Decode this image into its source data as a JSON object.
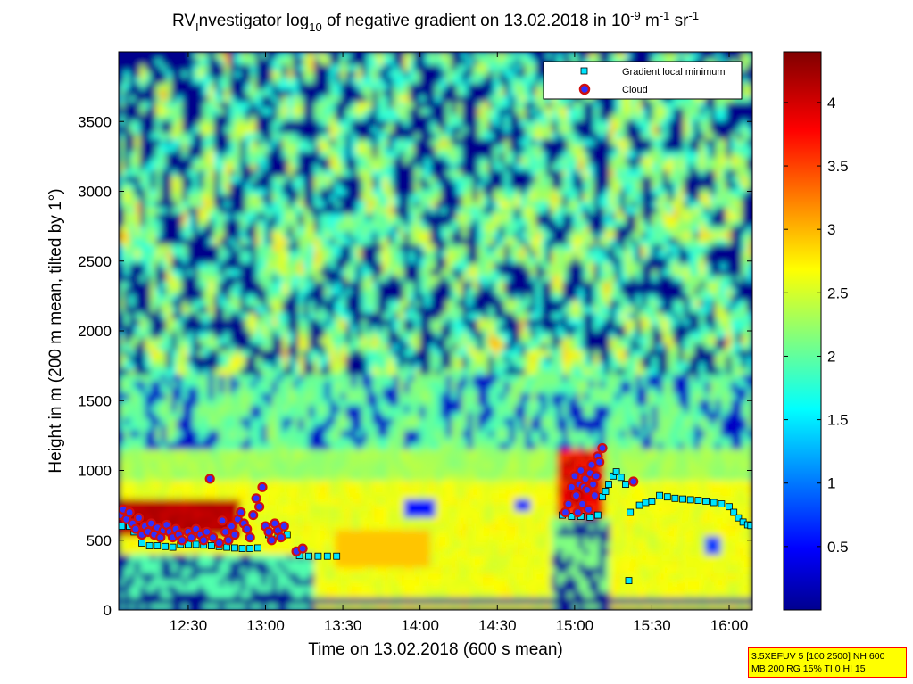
{
  "chart_data": {
    "type": "heatmap",
    "title": {
      "part1": "RV",
      "part1_sub": "I",
      "part2": "nvestigator log",
      "part2_sub": "10",
      "part3": " of negative gradient on 13.02.2018 in 10",
      "part3_sup": "-9",
      "part4": " m",
      "part4_sup": "-1",
      "part5": " sr",
      "part5_sup": "-1"
    },
    "xlabel": "Time on 13.02.2018 (600 s mean)",
    "ylabel": "Height in m (200 m mean, tilted by 1°)",
    "xlim_hours": [
      12.05,
      16.15
    ],
    "ylim": [
      0,
      4000
    ],
    "xticks": [
      {
        "value": 12.5,
        "label": "12:30"
      },
      {
        "value": 13.0,
        "label": "13:00"
      },
      {
        "value": 13.5,
        "label": "13:30"
      },
      {
        "value": 14.0,
        "label": "14:00"
      },
      {
        "value": 14.5,
        "label": "14:30"
      },
      {
        "value": 15.0,
        "label": "15:00"
      },
      {
        "value": 15.5,
        "label": "15:30"
      },
      {
        "value": 16.0,
        "label": "16:00"
      }
    ],
    "yticks": [
      {
        "value": 0,
        "label": "0"
      },
      {
        "value": 500,
        "label": "500"
      },
      {
        "value": 1000,
        "label": "1000"
      },
      {
        "value": 1500,
        "label": "1500"
      },
      {
        "value": 2000,
        "label": "2000"
      },
      {
        "value": 2500,
        "label": "2500"
      },
      {
        "value": 3000,
        "label": "3000"
      },
      {
        "value": 3500,
        "label": "3500"
      }
    ],
    "colorbar": {
      "range": [
        0,
        4.4
      ],
      "colormap": "jet",
      "ticks": [
        {
          "value": 0.5,
          "label": "0.5"
        },
        {
          "value": 1,
          "label": "1"
        },
        {
          "value": 1.5,
          "label": "1.5"
        },
        {
          "value": 2,
          "label": "2"
        },
        {
          "value": 2.5,
          "label": "2.5"
        },
        {
          "value": 3,
          "label": "3"
        },
        {
          "value": 3.5,
          "label": "3.5"
        },
        {
          "value": 4,
          "label": "4"
        }
      ]
    },
    "field_description": {
      "upper_levels": "patchy blue and green-yellow values between 1700 and 4000 m",
      "boundary_layer": "yellow-orange values 300-1200 m from 13:00 to 16:00",
      "early_layer": "dark red values 550-800 m before 12:50",
      "low_band": "dark blue strip near 70 m"
    },
    "legend": {
      "placement": "top-right",
      "entries": [
        {
          "label": "Gradient local minimum",
          "marker": "square",
          "color": "#00e5ff"
        },
        {
          "label": "Cloud",
          "marker": "circle",
          "color": "#d01010"
        }
      ]
    },
    "series": [
      {
        "name": "Gradient local minimum",
        "points": [
          {
            "t": 12.07,
            "h": 600
          },
          {
            "t": 12.12,
            "h": 600
          },
          {
            "t": 12.15,
            "h": 560
          },
          {
            "t": 12.2,
            "h": 480
          },
          {
            "t": 12.25,
            "h": 460
          },
          {
            "t": 12.3,
            "h": 460
          },
          {
            "t": 12.35,
            "h": 455
          },
          {
            "t": 12.4,
            "h": 450
          },
          {
            "t": 12.45,
            "h": 470
          },
          {
            "t": 12.5,
            "h": 470
          },
          {
            "t": 12.55,
            "h": 470
          },
          {
            "t": 12.6,
            "h": 465
          },
          {
            "t": 12.65,
            "h": 460
          },
          {
            "t": 12.7,
            "h": 455
          },
          {
            "t": 12.75,
            "h": 450
          },
          {
            "t": 12.8,
            "h": 445
          },
          {
            "t": 12.85,
            "h": 440
          },
          {
            "t": 12.9,
            "h": 440
          },
          {
            "t": 12.95,
            "h": 445
          },
          {
            "t": 13.02,
            "h": 540
          },
          {
            "t": 13.08,
            "h": 540
          },
          {
            "t": 13.14,
            "h": 540
          },
          {
            "t": 13.22,
            "h": 390
          },
          {
            "t": 13.28,
            "h": 385
          },
          {
            "t": 13.34,
            "h": 385
          },
          {
            "t": 13.4,
            "h": 385
          },
          {
            "t": 13.46,
            "h": 385
          },
          {
            "t": 14.92,
            "h": 680
          },
          {
            "t": 14.98,
            "h": 670
          },
          {
            "t": 15.04,
            "h": 670
          },
          {
            "t": 15.1,
            "h": 665
          },
          {
            "t": 15.15,
            "h": 680
          },
          {
            "t": 15.18,
            "h": 810
          },
          {
            "t": 15.2,
            "h": 850
          },
          {
            "t": 15.22,
            "h": 900
          },
          {
            "t": 15.25,
            "h": 960
          },
          {
            "t": 15.27,
            "h": 990
          },
          {
            "t": 15.3,
            "h": 950
          },
          {
            "t": 15.33,
            "h": 900
          },
          {
            "t": 15.35,
            "h": 210
          },
          {
            "t": 15.36,
            "h": 700
          },
          {
            "t": 15.38,
            "h": 920
          },
          {
            "t": 15.42,
            "h": 750
          },
          {
            "t": 15.46,
            "h": 770
          },
          {
            "t": 15.5,
            "h": 780
          },
          {
            "t": 15.55,
            "h": 820
          },
          {
            "t": 15.6,
            "h": 810
          },
          {
            "t": 15.65,
            "h": 800
          },
          {
            "t": 15.7,
            "h": 795
          },
          {
            "t": 15.75,
            "h": 790
          },
          {
            "t": 15.8,
            "h": 785
          },
          {
            "t": 15.85,
            "h": 780
          },
          {
            "t": 15.9,
            "h": 770
          },
          {
            "t": 15.95,
            "h": 760
          },
          {
            "t": 16.0,
            "h": 740
          },
          {
            "t": 16.03,
            "h": 700
          },
          {
            "t": 16.06,
            "h": 660
          },
          {
            "t": 16.09,
            "h": 630
          },
          {
            "t": 16.12,
            "h": 610
          },
          {
            "t": 16.14,
            "h": 605
          }
        ]
      },
      {
        "name": "Cloud",
        "points": [
          {
            "t": 12.06,
            "h": 680
          },
          {
            "t": 12.08,
            "h": 720
          },
          {
            "t": 12.1,
            "h": 650
          },
          {
            "t": 12.12,
            "h": 700
          },
          {
            "t": 12.14,
            "h": 620
          },
          {
            "t": 12.16,
            "h": 580
          },
          {
            "t": 12.18,
            "h": 660
          },
          {
            "t": 12.2,
            "h": 540
          },
          {
            "t": 12.22,
            "h": 600
          },
          {
            "t": 12.24,
            "h": 560
          },
          {
            "t": 12.26,
            "h": 620
          },
          {
            "t": 12.28,
            "h": 540
          },
          {
            "t": 12.3,
            "h": 590
          },
          {
            "t": 12.32,
            "h": 520
          },
          {
            "t": 12.34,
            "h": 570
          },
          {
            "t": 12.36,
            "h": 610
          },
          {
            "t": 12.38,
            "h": 560
          },
          {
            "t": 12.4,
            "h": 520
          },
          {
            "t": 12.42,
            "h": 580
          },
          {
            "t": 12.44,
            "h": 540
          },
          {
            "t": 12.46,
            "h": 500
          },
          {
            "t": 12.5,
            "h": 560
          },
          {
            "t": 12.52,
            "h": 520
          },
          {
            "t": 12.55,
            "h": 580
          },
          {
            "t": 12.58,
            "h": 540
          },
          {
            "t": 12.6,
            "h": 500
          },
          {
            "t": 12.62,
            "h": 560
          },
          {
            "t": 12.64,
            "h": 940
          },
          {
            "t": 12.66,
            "h": 520
          },
          {
            "t": 12.7,
            "h": 480
          },
          {
            "t": 12.72,
            "h": 640
          },
          {
            "t": 12.74,
            "h": 560
          },
          {
            "t": 12.76,
            "h": 500
          },
          {
            "t": 12.78,
            "h": 600
          },
          {
            "t": 12.8,
            "h": 540
          },
          {
            "t": 12.82,
            "h": 650
          },
          {
            "t": 12.84,
            "h": 700
          },
          {
            "t": 12.86,
            "h": 620
          },
          {
            "t": 12.88,
            "h": 580
          },
          {
            "t": 12.9,
            "h": 520
          },
          {
            "t": 12.92,
            "h": 680
          },
          {
            "t": 12.94,
            "h": 800
          },
          {
            "t": 12.96,
            "h": 740
          },
          {
            "t": 12.98,
            "h": 880
          },
          {
            "t": 13.0,
            "h": 600
          },
          {
            "t": 13.02,
            "h": 560
          },
          {
            "t": 13.04,
            "h": 500
          },
          {
            "t": 13.06,
            "h": 620
          },
          {
            "t": 13.08,
            "h": 570
          },
          {
            "t": 13.1,
            "h": 520
          },
          {
            "t": 13.12,
            "h": 600
          },
          {
            "t": 13.2,
            "h": 420
          },
          {
            "t": 13.24,
            "h": 440
          },
          {
            "t": 14.94,
            "h": 700
          },
          {
            "t": 14.96,
            "h": 760
          },
          {
            "t": 14.98,
            "h": 880
          },
          {
            "t": 15.0,
            "h": 960
          },
          {
            "t": 15.01,
            "h": 820
          },
          {
            "t": 15.02,
            "h": 700
          },
          {
            "t": 15.03,
            "h": 900
          },
          {
            "t": 15.04,
            "h": 1000
          },
          {
            "t": 15.05,
            "h": 760
          },
          {
            "t": 15.06,
            "h": 880
          },
          {
            "t": 15.07,
            "h": 940
          },
          {
            "t": 15.08,
            "h": 860
          },
          {
            "t": 15.09,
            "h": 720
          },
          {
            "t": 15.1,
            "h": 980
          },
          {
            "t": 15.11,
            "h": 1040
          },
          {
            "t": 15.12,
            "h": 900
          },
          {
            "t": 15.13,
            "h": 820
          },
          {
            "t": 15.14,
            "h": 960
          },
          {
            "t": 15.15,
            "h": 1100
          },
          {
            "t": 15.16,
            "h": 1060
          },
          {
            "t": 15.18,
            "h": 1160
          },
          {
            "t": 15.38,
            "h": 920
          }
        ]
      }
    ]
  },
  "info_box": {
    "line1": "3.5XEFUV 5 [100 2500] NH 600",
    "line2": "MB 200 RG 15% TI 0 HI 15"
  },
  "colors": {
    "low": "#00008f",
    "mid": "#00ffff",
    "yellow": "#ffff00",
    "high": "#800000",
    "infobox_bg": "#ffff00",
    "infobox_border": "#ff0000"
  }
}
